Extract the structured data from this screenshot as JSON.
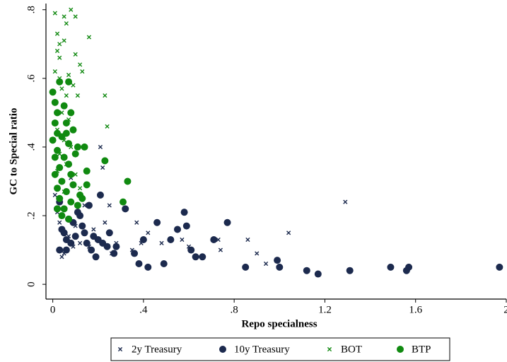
{
  "chart_data": {
    "type": "scatter",
    "x_label": "Repo specialness",
    "y_label": "GC to Special ratio",
    "xlim": [
      -0.03,
      2.0
    ],
    "ylim": [
      -0.043,
      0.818
    ],
    "xticks": [
      0,
      {
        "value": 0.4,
        "label": ".4"
      },
      {
        "value": 0.8,
        "label": ".8"
      },
      1.2,
      1.6,
      2
    ],
    "yticks": [
      0,
      {
        "value": 0.2,
        "label": ".2"
      },
      {
        "value": 0.4,
        "label": ".4"
      },
      {
        "value": 0.6,
        "label": ".6"
      },
      {
        "value": 0.8,
        "label": ".8"
      }
    ],
    "legend": "bottom",
    "series": [
      {
        "name": "2y Treasury",
        "color": "#1c2a4e",
        "marker": "x",
        "x": [
          0.01,
          0.02,
          0.03,
          0.05,
          0.07,
          0.09,
          0.1,
          0.12,
          0.14,
          0.16,
          0.18,
          0.2,
          0.21,
          0.22,
          0.23,
          0.25,
          0.26,
          0.28,
          0.35,
          0.37,
          0.39,
          0.42,
          0.48,
          0.57,
          0.6,
          0.74,
          0.73,
          0.86,
          0.9,
          0.94,
          1.04,
          1.29,
          0.08,
          0.04
        ],
        "values": [
          0.26,
          0.21,
          0.18,
          0.09,
          0.14,
          0.11,
          0.17,
          0.12,
          0.23,
          0.11,
          0.16,
          0.13,
          0.4,
          0.34,
          0.18,
          0.23,
          0.09,
          0.12,
          0.1,
          0.18,
          0.12,
          0.15,
          0.12,
          0.13,
          0.11,
          0.1,
          0.13,
          0.13,
          0.09,
          0.06,
          0.15,
          0.24,
          0.31,
          0.08
        ]
      },
      {
        "name": "10y Treasury",
        "color": "#1c2a4e",
        "marker": "circle",
        "x": [
          0.02,
          0.03,
          0.04,
          0.05,
          0.06,
          0.07,
          0.08,
          0.09,
          0.1,
          0.11,
          0.12,
          0.13,
          0.14,
          0.15,
          0.16,
          0.17,
          0.18,
          0.19,
          0.2,
          0.21,
          0.22,
          0.24,
          0.25,
          0.27,
          0.28,
          0.32,
          0.36,
          0.38,
          0.4,
          0.42,
          0.46,
          0.49,
          0.52,
          0.55,
          0.58,
          0.59,
          0.61,
          0.63,
          0.66,
          0.71,
          0.77,
          0.85,
          0.99,
          1.0,
          1.12,
          1.17,
          1.31,
          1.49,
          1.56,
          1.57,
          1.97,
          0.03,
          0.06
        ],
        "values": [
          0.22,
          0.24,
          0.16,
          0.15,
          0.13,
          0.19,
          0.12,
          0.18,
          0.14,
          0.21,
          0.2,
          0.17,
          0.15,
          0.12,
          0.23,
          0.1,
          0.14,
          0.08,
          0.13,
          0.26,
          0.12,
          0.11,
          0.15,
          0.09,
          0.11,
          0.22,
          0.09,
          0.06,
          0.13,
          0.05,
          0.18,
          0.06,
          0.13,
          0.16,
          0.21,
          0.17,
          0.1,
          0.08,
          0.08,
          0.13,
          0.18,
          0.05,
          0.07,
          0.05,
          0.04,
          0.03,
          0.04,
          0.05,
          0.04,
          0.05,
          0.05,
          0.1,
          0.1
        ]
      },
      {
        "name": "BOT",
        "color": "#138a13",
        "marker": "x",
        "x": [
          0.01,
          0.02,
          0.03,
          0.02,
          0.03,
          0.05,
          0.06,
          0.08,
          0.1,
          0.05,
          0.07,
          0.1,
          0.16,
          0.12,
          0.13,
          0.03,
          0.01,
          0.04,
          0.06,
          0.09,
          0.11,
          0.23,
          0.24,
          0.04,
          0.07,
          0.02,
          0.05,
          0.08,
          0.03,
          0.06,
          0.1,
          0.02,
          0.12,
          0.05
        ],
        "values": [
          0.79,
          0.73,
          0.7,
          0.68,
          0.66,
          0.78,
          0.76,
          0.8,
          0.78,
          0.71,
          0.61,
          0.67,
          0.72,
          0.64,
          0.62,
          0.6,
          0.62,
          0.57,
          0.55,
          0.58,
          0.55,
          0.55,
          0.46,
          0.5,
          0.48,
          0.45,
          0.42,
          0.4,
          0.38,
          0.35,
          0.32,
          0.33,
          0.28,
          0.27
        ]
      },
      {
        "name": "BTP",
        "color": "#108a10",
        "marker": "circle",
        "x": [
          0.0,
          0.01,
          0.02,
          0.03,
          0.05,
          0.07,
          0.06,
          0.08,
          0.01,
          0.02,
          0.0,
          0.04,
          0.07,
          0.09,
          0.11,
          0.14,
          0.1,
          0.02,
          0.05,
          0.03,
          0.07,
          0.01,
          0.04,
          0.08,
          0.15,
          0.23,
          0.02,
          0.06,
          0.09,
          0.12,
          0.15,
          0.03,
          0.05,
          0.08,
          0.11,
          0.13,
          0.02,
          0.04,
          0.07,
          0.33,
          0.31,
          0.01,
          0.06
        ],
        "values": [
          0.56,
          0.53,
          0.5,
          0.59,
          0.52,
          0.59,
          0.47,
          0.5,
          0.47,
          0.44,
          0.42,
          0.43,
          0.41,
          0.45,
          0.4,
          0.4,
          0.38,
          0.39,
          0.37,
          0.34,
          0.35,
          0.32,
          0.3,
          0.32,
          0.33,
          0.36,
          0.28,
          0.27,
          0.29,
          0.26,
          0.29,
          0.25,
          0.22,
          0.24,
          0.23,
          0.25,
          0.22,
          0.2,
          0.19,
          0.3,
          0.24,
          0.37,
          0.44
        ]
      }
    ]
  }
}
